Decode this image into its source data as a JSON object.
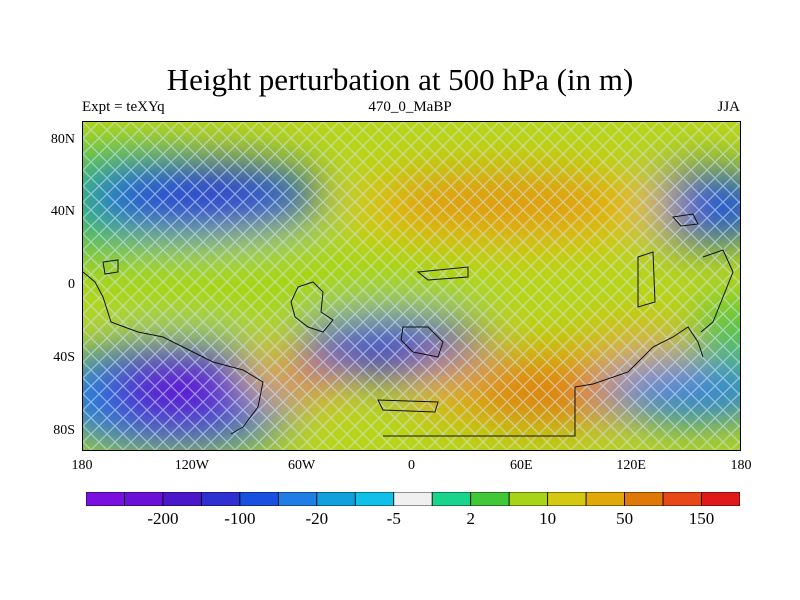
{
  "title": "Height perturbation at 500 hPa (in m)",
  "subtitle_left": "Expt = teXYq",
  "subtitle_center": "470_0_MaBP",
  "subtitle_right": "JJA",
  "y_ticks": [
    "80N",
    "40N",
    "0",
    "40S",
    "80S"
  ],
  "x_ticks": [
    "180",
    "120W",
    "60W",
    "0",
    "60E",
    "120E",
    "180"
  ],
  "colorbar": {
    "colors": [
      "#7a10e0",
      "#6a10d8",
      "#4a18c8",
      "#2e30d0",
      "#1850e0",
      "#1e7ee6",
      "#10a0e0",
      "#10c0e8",
      "#f0f0f0",
      "#18d48c",
      "#40c838",
      "#a8d418",
      "#d4c810",
      "#e0a808",
      "#e07808",
      "#e84818",
      "#e01a1a"
    ],
    "labels": [
      {
        "text": "-200",
        "boundary": 2
      },
      {
        "text": "-100",
        "boundary": 4
      },
      {
        "text": "-20",
        "boundary": 6
      },
      {
        "text": "-5",
        "boundary": 8
      },
      {
        "text": "2",
        "boundary": 10
      },
      {
        "text": "10",
        "boundary": 12
      },
      {
        "text": "50",
        "boundary": 14
      },
      {
        "text": "150",
        "boundary": 16
      }
    ]
  }
}
